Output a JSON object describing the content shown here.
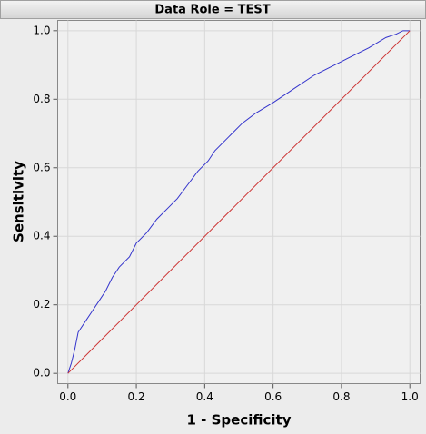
{
  "chart_data": {
    "type": "line",
    "title": "Data Role = TEST",
    "xlabel": "1 - Specificity",
    "ylabel": "Sensitivity",
    "xlim": [
      -0.03,
      1.03
    ],
    "ylim": [
      -0.03,
      1.03
    ],
    "xticks": [
      {
        "value": 0,
        "label": "0.0"
      },
      0.2,
      0.4,
      0.6,
      0.8,
      {
        "value": 1,
        "label": "1.0"
      }
    ],
    "yticks": [
      {
        "value": 0,
        "label": "0.0"
      },
      0.2,
      0.4,
      0.6,
      0.8,
      {
        "value": 1,
        "label": "1.0"
      }
    ],
    "grid": true,
    "series": [
      {
        "color": "#3333cc",
        "x": [
          0,
          0.01,
          0.02,
          0.03,
          0.05,
          0.07,
          0.09,
          0.11,
          0.13,
          0.15,
          0.18,
          0.2,
          0.23,
          0.26,
          0.29,
          0.32,
          0.35,
          0.38,
          0.41,
          0.43,
          0.47,
          0.51,
          0.55,
          0.6,
          0.66,
          0.72,
          0.8,
          0.88,
          0.93,
          0.96,
          0.98,
          1
        ],
        "values": [
          0,
          0.03,
          0.07,
          0.12,
          0.15,
          0.18,
          0.21,
          0.24,
          0.28,
          0.31,
          0.34,
          0.38,
          0.41,
          0.45,
          0.48,
          0.51,
          0.55,
          0.59,
          0.62,
          0.65,
          0.69,
          0.73,
          0.76,
          0.79,
          0.83,
          0.87,
          0.91,
          0.95,
          0.98,
          0.99,
          1,
          1
        ]
      },
      {
        "color": "#cc3333",
        "x": [
          0,
          1
        ],
        "values": [
          0,
          1
        ]
      }
    ]
  }
}
